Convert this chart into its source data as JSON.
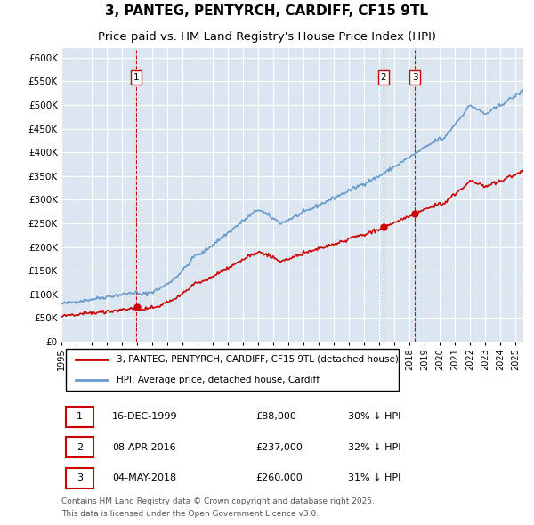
{
  "title": "3, PANTEG, PENTYRCH, CARDIFF, CF15 9TL",
  "subtitle": "Price paid vs. HM Land Registry's House Price Index (HPI)",
  "title_fontsize": 11,
  "subtitle_fontsize": 9.5,
  "background_color": "#ffffff",
  "plot_bg_color": "#dce6f0",
  "grid_color": "#ffffff",
  "red_line_color": "#cc0000",
  "blue_line_color": "#6699cc",
  "vline_color": "#cc0000",
  "yticks": [
    0,
    50000,
    100000,
    150000,
    200000,
    250000,
    300000,
    350000,
    400000,
    450000,
    500000,
    550000,
    600000
  ],
  "ytick_labels": [
    "£0",
    "£50K",
    "£100K",
    "£150K",
    "£200K",
    "£250K",
    "£300K",
    "£350K",
    "£400K",
    "£450K",
    "£500K",
    "£550K",
    "£600K"
  ],
  "xmin": 1995.0,
  "xmax": 2025.5,
  "ymin": 0,
  "ymax": 620000,
  "transactions": [
    {
      "num": 1,
      "date_dec": 1999.96,
      "price": 88000,
      "label": "1"
    },
    {
      "num": 2,
      "date_dec": 2016.27,
      "price": 237000,
      "label": "2"
    },
    {
      "num": 3,
      "date_dec": 2018.34,
      "price": 260000,
      "label": "3"
    }
  ],
  "transaction_info": [
    {
      "num": "1",
      "date": "16-DEC-1999",
      "price": "£88,000",
      "pct": "30% ↓ HPI"
    },
    {
      "num": "2",
      "date": "08-APR-2016",
      "price": "£237,000",
      "pct": "32% ↓ HPI"
    },
    {
      "num": "3",
      "date": "04-MAY-2018",
      "price": "£260,000",
      "pct": "31% ↓ HPI"
    }
  ],
  "legend_entries": [
    "3, PANTEG, PENTYRCH, CARDIFF, CF15 9TL (detached house)",
    "HPI: Average price, detached house, Cardiff"
  ],
  "footer_line1": "Contains HM Land Registry data © Crown copyright and database right 2025.",
  "footer_line2": "This data is licensed under the Open Government Licence v3.0."
}
